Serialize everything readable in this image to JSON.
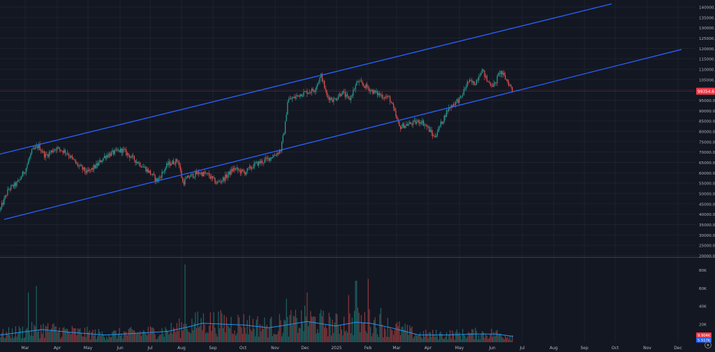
{
  "chart_data": [
    {
      "type": "candlestick",
      "x_ticks": [
        "Mar",
        "Apr",
        "May",
        "Jun",
        "Jul",
        "Aug",
        "Sep",
        "Oct",
        "Nov",
        "Dec",
        "2025",
        "Feb",
        "Mar",
        "Apr",
        "May",
        "Jun",
        "Jul",
        "Aug",
        "Sep",
        "Oct",
        "Nov",
        "Dec"
      ],
      "y_ticks": [
        "140000.0",
        "135000.0",
        "130000.0",
        "125000.0",
        "120000.0",
        "115000.0",
        "110000.0",
        "105000.0",
        "100000.0",
        "95000.0",
        "90000.0",
        "85000.0",
        "80000.0",
        "75000.0",
        "70000.0",
        "65000.0",
        "60000.0",
        "55000.0",
        "50000.0",
        "45000.0",
        "40000.0",
        "35000.0",
        "30000.0",
        "25000.0",
        "20000.0"
      ],
      "ylim": [
        20000,
        141000
      ],
      "last_price_label": "99354.6",
      "last_price": 99354.6,
      "last_price_color": "#f23645",
      "channel": {
        "color": "#2962ff",
        "upper": [
          [
            0,
            69000
          ],
          [
            876,
            141500
          ]
        ],
        "lower": [
          [
            6,
            37500
          ],
          [
            976,
            119500
          ]
        ]
      },
      "anchors": [
        [
          0,
          42000
        ],
        [
          12,
          52000
        ],
        [
          25,
          55000
        ],
        [
          37,
          62000
        ],
        [
          45,
          70000
        ],
        [
          55,
          73000
        ],
        [
          65,
          68000
        ],
        [
          80,
          72000
        ],
        [
          95,
          70000
        ],
        [
          110,
          64000
        ],
        [
          125,
          60000
        ],
        [
          140,
          64000
        ],
        [
          150,
          68000
        ],
        [
          165,
          70000
        ],
        [
          175,
          71000
        ],
        [
          190,
          67000
        ],
        [
          205,
          63000
        ],
        [
          215,
          60000
        ],
        [
          225,
          56000
        ],
        [
          240,
          64000
        ],
        [
          255,
          66000
        ],
        [
          262,
          55000
        ],
        [
          270,
          58000
        ],
        [
          285,
          60000
        ],
        [
          298,
          59000
        ],
        [
          310,
          55000
        ],
        [
          320,
          57000
        ],
        [
          335,
          62000
        ],
        [
          350,
          60000
        ],
        [
          365,
          64000
        ],
        [
          380,
          66000
        ],
        [
          395,
          69000
        ],
        [
          402,
          71000
        ],
        [
          408,
          82000
        ],
        [
          412,
          95000
        ],
        [
          420,
          96000
        ],
        [
          430,
          98000
        ],
        [
          440,
          99000
        ],
        [
          450,
          100000
        ],
        [
          460,
          107000
        ],
        [
          468,
          97000
        ],
        [
          478,
          95000
        ],
        [
          490,
          99000
        ],
        [
          500,
          95000
        ],
        [
          512,
          104000
        ],
        [
          522,
          102000
        ],
        [
          535,
          99000
        ],
        [
          548,
          97000
        ],
        [
          558,
          96000
        ],
        [
          566,
          88000
        ],
        [
          572,
          82000
        ],
        [
          580,
          83000
        ],
        [
          592,
          84000
        ],
        [
          603,
          85000
        ],
        [
          612,
          82000
        ],
        [
          622,
          77000
        ],
        [
          632,
          84000
        ],
        [
          642,
          91000
        ],
        [
          652,
          94000
        ],
        [
          660,
          96000
        ],
        [
          670,
          104000
        ],
        [
          680,
          103000
        ],
        [
          690,
          110000
        ],
        [
          698,
          104000
        ],
        [
          708,
          102000
        ],
        [
          716,
          109000
        ],
        [
          725,
          105000
        ],
        [
          735,
          99354.6
        ]
      ],
      "volume_ticks": [
        "80K",
        "60K",
        "40K",
        "20K"
      ],
      "volume_ylim": [
        0,
        88000
      ],
      "volume_labels": [
        {
          "text": "9.904K",
          "color": "#f23645",
          "value": 9904
        },
        {
          "text": "5.517K",
          "color": "#2962ff",
          "value": 5517
        }
      ],
      "volume_spikes": [
        [
          40,
          55000
        ],
        [
          52,
          62000
        ],
        [
          265,
          86000
        ],
        [
          410,
          48000
        ],
        [
          440,
          55000
        ],
        [
          500,
          52000
        ],
        [
          510,
          68000
        ],
        [
          527,
          70000
        ],
        [
          545,
          38000
        ]
      ],
      "volume_ma": [
        [
          0,
          8000
        ],
        [
          30,
          11000
        ],
        [
          60,
          14000
        ],
        [
          100,
          11000
        ],
        [
          150,
          8000
        ],
        [
          200,
          10000
        ],
        [
          240,
          12000
        ],
        [
          270,
          17000
        ],
        [
          290,
          21000
        ],
        [
          320,
          20000
        ],
        [
          350,
          19000
        ],
        [
          385,
          16000
        ],
        [
          410,
          19000
        ],
        [
          440,
          23000
        ],
        [
          480,
          18000
        ],
        [
          510,
          22000
        ],
        [
          530,
          21000
        ],
        [
          560,
          16000
        ],
        [
          600,
          8000
        ],
        [
          640,
          8000
        ],
        [
          680,
          9000
        ],
        [
          710,
          9000
        ],
        [
          735,
          6500
        ]
      ],
      "colors": {
        "up": "#26a69a",
        "down": "#ef5350",
        "background": "#131722",
        "grid": "#1e222d",
        "text": "#b2b5be"
      }
    }
  ]
}
